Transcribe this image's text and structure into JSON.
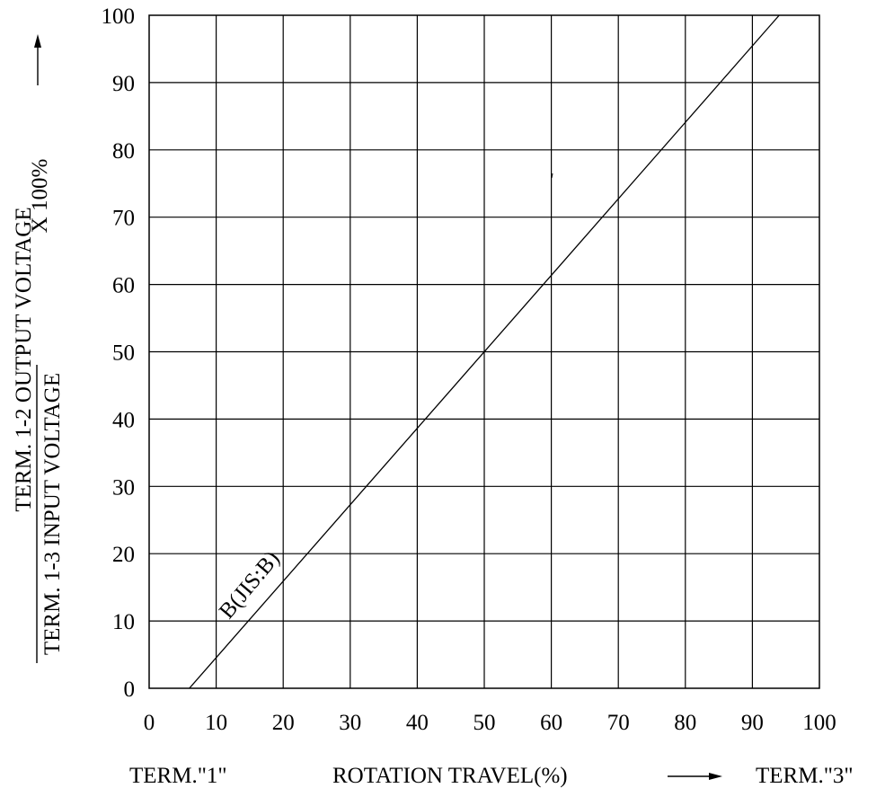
{
  "chart_data": {
    "type": "line",
    "x": [
      6,
      94
    ],
    "series": [
      {
        "name": "B(JIS:B)",
        "values": [
          0,
          100
        ]
      }
    ],
    "xlim": [
      0,
      100
    ],
    "ylim": [
      0,
      100
    ],
    "x_ticks": [
      "0",
      "10",
      "20",
      "30",
      "40",
      "50",
      "60",
      "70",
      "80",
      "90",
      "100"
    ],
    "y_ticks": [
      "0",
      "10",
      "20",
      "30",
      "40",
      "50",
      "60",
      "70",
      "80",
      "90",
      "100"
    ],
    "grid": true,
    "curve_label": "B(JIS:B)",
    "xlabel_left": "TERM.\"1\"",
    "xlabel": "ROTATION TRAVEL(%)",
    "xlabel_right": "TERM.\"3\"",
    "ylabel_numerator": "TERM. 1-2 OUTPUT VOLTAGE",
    "ylabel_denominator": "TERM. 1-3 INPUT VOLTAGE",
    "ylabel_multiplier": "X 100%"
  }
}
